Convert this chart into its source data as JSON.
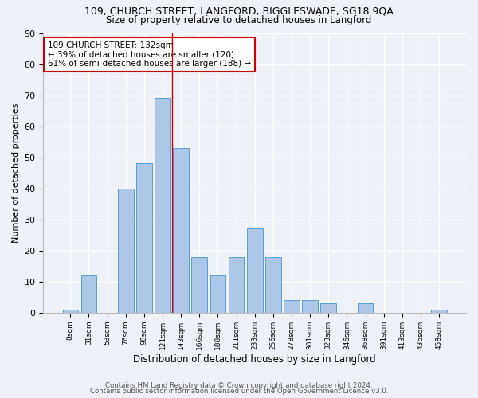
{
  "title1": "109, CHURCH STREET, LANGFORD, BIGGLESWADE, SG18 9QA",
  "title2": "Size of property relative to detached houses in Langford",
  "xlabel": "Distribution of detached houses by size in Langford",
  "ylabel": "Number of detached properties",
  "categories": [
    "8sqm",
    "31sqm",
    "53sqm",
    "76sqm",
    "98sqm",
    "121sqm",
    "143sqm",
    "166sqm",
    "188sqm",
    "211sqm",
    "233sqm",
    "256sqm",
    "278sqm",
    "301sqm",
    "323sqm",
    "346sqm",
    "368sqm",
    "391sqm",
    "413sqm",
    "436sqm",
    "458sqm"
  ],
  "values": [
    1,
    12,
    0,
    40,
    48,
    69,
    53,
    18,
    12,
    18,
    27,
    18,
    4,
    4,
    3,
    0,
    3,
    0,
    0,
    0,
    1
  ],
  "bar_color": "#aec6e8",
  "bar_edge_color": "#5a9fd4",
  "vline_x_index": 5.5,
  "vline_color": "#cc0000",
  "annotation_title": "109 CHURCH STREET: 132sqm",
  "annotation_line1": "← 39% of detached houses are smaller (120)",
  "annotation_line2": "61% of semi-detached houses are larger (188) →",
  "annotation_box_color": "#cc0000",
  "ylim": [
    0,
    90
  ],
  "yticks": [
    0,
    10,
    20,
    30,
    40,
    50,
    60,
    70,
    80,
    90
  ],
  "footer1": "Contains HM Land Registry data © Crown copyright and database right 2024.",
  "footer2": "Contains public sector information licensed under the Open Government Licence v3.0.",
  "bg_color": "#eef2f8",
  "plot_bg_color": "#eef2f8",
  "grid_color": "#ffffff"
}
